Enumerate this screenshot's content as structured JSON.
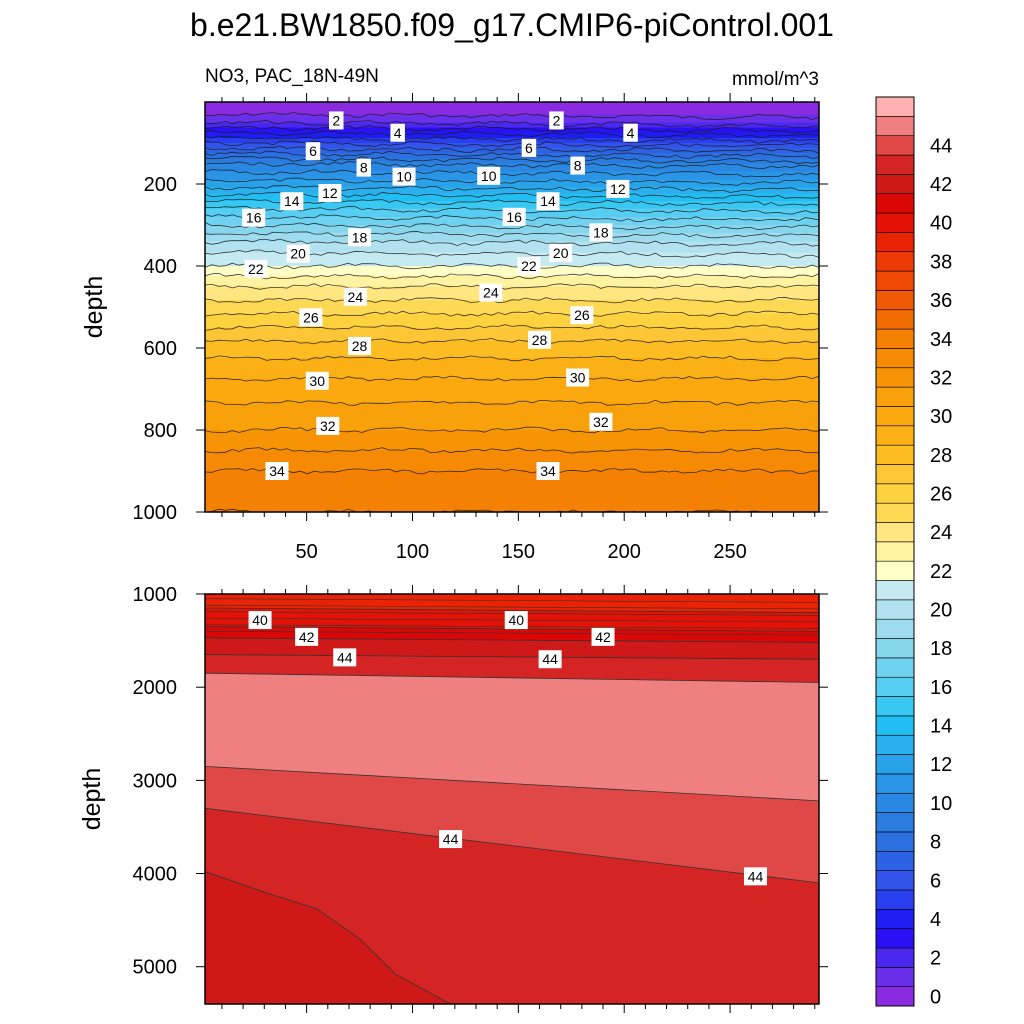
{
  "title": "b.e21.BW1850.f09_g17.CMIP6-piControl.001",
  "subtitle_left": "NO3, PAC_18N-49N",
  "subtitle_right": "mmol/m^3",
  "chart_data": [
    {
      "type": "contour",
      "panel": "upper",
      "variable": "NO3",
      "region": "PAC_18N-49N",
      "units": "mmol/m^3",
      "xlabel": "",
      "ylabel": "depth",
      "xlim": [
        2,
        292
      ],
      "ylim": [
        1000,
        0
      ],
      "xticks": [
        50,
        100,
        150,
        200,
        250
      ],
      "yticks": [
        200,
        400,
        600,
        800,
        1000
      ],
      "profile": {
        "depth": [
          0,
          30,
          50,
          75,
          100,
          150,
          200,
          250,
          300,
          350,
          400,
          450,
          500,
          600,
          700,
          800,
          900,
          1000
        ],
        "no3": [
          0,
          1,
          2,
          4,
          6,
          10,
          12.5,
          15.5,
          18,
          20.5,
          22,
          24,
          25.5,
          28.5,
          30.5,
          32,
          34,
          35
        ]
      },
      "contour_labels": [
        {
          "x": 64,
          "depth": 45,
          "value": "2"
        },
        {
          "x": 168,
          "depth": 45,
          "value": "2"
        },
        {
          "x": 93,
          "depth": 75,
          "value": "4"
        },
        {
          "x": 203,
          "depth": 75,
          "value": "4"
        },
        {
          "x": 53,
          "depth": 120,
          "value": "6"
        },
        {
          "x": 155,
          "depth": 112,
          "value": "6"
        },
        {
          "x": 77,
          "depth": 160,
          "value": "8"
        },
        {
          "x": 178,
          "depth": 155,
          "value": "8"
        },
        {
          "x": 96,
          "depth": 182,
          "value": "10"
        },
        {
          "x": 136,
          "depth": 180,
          "value": "10"
        },
        {
          "x": 61,
          "depth": 222,
          "value": "12"
        },
        {
          "x": 197,
          "depth": 212,
          "value": "12"
        },
        {
          "x": 43,
          "depth": 242,
          "value": "14"
        },
        {
          "x": 164,
          "depth": 242,
          "value": "14"
        },
        {
          "x": 25,
          "depth": 282,
          "value": "16"
        },
        {
          "x": 148,
          "depth": 280,
          "value": "16"
        },
        {
          "x": 75,
          "depth": 330,
          "value": "18"
        },
        {
          "x": 189,
          "depth": 318,
          "value": "18"
        },
        {
          "x": 46,
          "depth": 370,
          "value": "20"
        },
        {
          "x": 170,
          "depth": 368,
          "value": "20"
        },
        {
          "x": 26,
          "depth": 407,
          "value": "22"
        },
        {
          "x": 155,
          "depth": 400,
          "value": "22"
        },
        {
          "x": 73,
          "depth": 475,
          "value": "24"
        },
        {
          "x": 137,
          "depth": 465,
          "value": "24"
        },
        {
          "x": 52,
          "depth": 525,
          "value": "26"
        },
        {
          "x": 180,
          "depth": 520,
          "value": "26"
        },
        {
          "x": 75,
          "depth": 595,
          "value": "28"
        },
        {
          "x": 160,
          "depth": 580,
          "value": "28"
        },
        {
          "x": 55,
          "depth": 680,
          "value": "30"
        },
        {
          "x": 178,
          "depth": 672,
          "value": "30"
        },
        {
          "x": 60,
          "depth": 790,
          "value": "32"
        },
        {
          "x": 189,
          "depth": 780,
          "value": "32"
        },
        {
          "x": 36,
          "depth": 900,
          "value": "34"
        },
        {
          "x": 164,
          "depth": 900,
          "value": "34"
        }
      ]
    },
    {
      "type": "contour",
      "panel": "lower",
      "variable": "NO3",
      "units": "mmol/m^3",
      "xlabel": "",
      "ylabel": "depth",
      "xlim": [
        2,
        292
      ],
      "ylim": [
        5400,
        1000
      ],
      "xticks": [
        50,
        100,
        150,
        200,
        250
      ],
      "yticks": [
        1000,
        2000,
        3000,
        4000,
        5000
      ],
      "boundaries": [
        {
          "value": 40,
          "depth_left": 1150,
          "depth_right": 1200
        },
        {
          "value": 41,
          "depth_left": 1350,
          "depth_right": 1400
        },
        {
          "value": 42,
          "depth_left": 1470,
          "depth_right": 1520
        },
        {
          "value": 43,
          "depth_left": 1650,
          "depth_right": 1700
        },
        {
          "value": 44,
          "depth_left": 1850,
          "depth_right": 1950
        },
        {
          "value": 45,
          "depth_left": 2850,
          "depth_right": 3220
        },
        {
          "value": 44,
          "depth_left": 3300,
          "depth_right": 4100
        }
      ],
      "zones": [
        {
          "range": "44-45",
          "description": "upper"
        },
        {
          "range": "45-46",
          "description": "core"
        },
        {
          "range": "44-45",
          "description": "lower"
        },
        {
          "range": "43-44",
          "description": "deep"
        },
        {
          "range": "42-43",
          "description": "bottom-left"
        }
      ],
      "contour_labels": [
        {
          "x": 28,
          "depth": 1280,
          "value": "40"
        },
        {
          "x": 149,
          "depth": 1280,
          "value": "40"
        },
        {
          "x": 50,
          "depth": 1460,
          "value": "42"
        },
        {
          "x": 190,
          "depth": 1460,
          "value": "42"
        },
        {
          "x": 68,
          "depth": 1680,
          "value": "44"
        },
        {
          "x": 165,
          "depth": 1700,
          "value": "44"
        },
        {
          "x": 118,
          "depth": 3630,
          "value": "44"
        },
        {
          "x": 262,
          "depth": 4030,
          "value": "44"
        }
      ]
    },
    {
      "type": "colorbar",
      "levels": [
        0,
        1,
        2,
        3,
        4,
        5,
        6,
        7,
        8,
        9,
        10,
        11,
        12,
        13,
        14,
        15,
        16,
        17,
        18,
        19,
        20,
        21,
        22,
        23,
        24,
        25,
        26,
        27,
        28,
        29,
        30,
        31,
        32,
        33,
        34,
        35,
        36,
        37,
        38,
        39,
        40,
        41,
        42,
        43,
        44,
        45,
        46
      ],
      "labels": [
        "0",
        "2",
        "4",
        "6",
        "8",
        "10",
        "12",
        "14",
        "16",
        "18",
        "20",
        "22",
        "24",
        "26",
        "28",
        "30",
        "32",
        "34",
        "36",
        "38",
        "40",
        "42",
        "44"
      ],
      "colors": [
        "#8a2be2",
        "#6a2fe8",
        "#4a28f0",
        "#2a10f5",
        "#1e1ef2",
        "#2a3ff0",
        "#3254ea",
        "#2e62e5",
        "#2b6fe0",
        "#2a7cdf",
        "#2a88e2",
        "#2a94e6",
        "#2aa2ea",
        "#2ab0ee",
        "#20bef2",
        "#38c8f2",
        "#56cdf2",
        "#6ed2f0",
        "#86d6ee",
        "#9cdcee",
        "#b2e2ef",
        "#c6eaf2",
        "#ffffc8",
        "#fff2a0",
        "#ffe680",
        "#fed955",
        "#fdd23e",
        "#fcc637",
        "#fcbc22",
        "#fbb016",
        "#fba90e",
        "#f9a10a",
        "#f79406",
        "#f68a05",
        "#f48004",
        "#f26c04",
        "#f05a04",
        "#ef4804",
        "#ee3a04",
        "#ec2204",
        "#e41206",
        "#db0606",
        "#cf1818",
        "#d42424",
        "#e04848",
        "#f08080",
        "#ffb0b0"
      ]
    }
  ]
}
